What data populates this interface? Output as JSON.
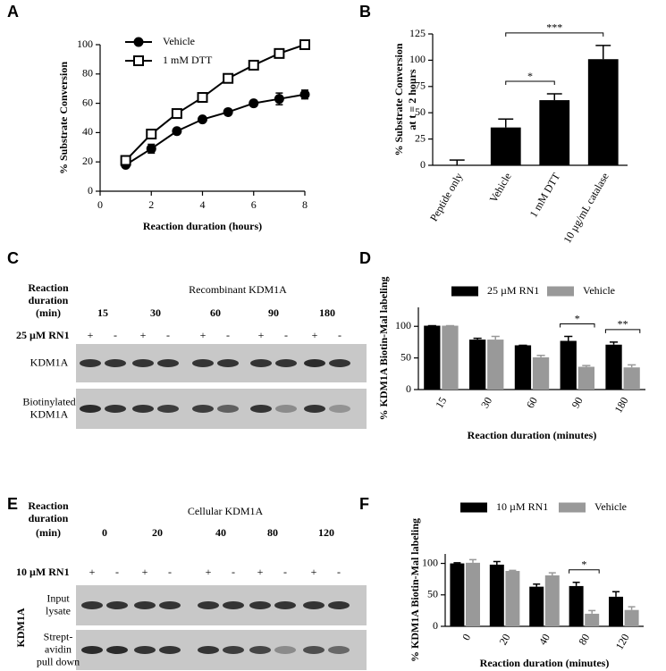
{
  "chart_data": [
    {
      "type": "line",
      "panel": "A",
      "xlabel": "Reaction duration (hours)",
      "ylabel": [
        "% Substrate Conversion"
      ],
      "x": [
        1,
        2,
        3,
        4,
        5,
        6,
        7,
        8
      ],
      "xlim": [
        0,
        8
      ],
      "xticks": [
        0,
        2,
        4,
        6,
        8
      ],
      "ylim": [
        0,
        100
      ],
      "yticks": [
        0,
        20,
        40,
        60,
        80,
        100
      ],
      "legend": "upper left",
      "series": [
        {
          "name": "Vehicle",
          "color": "#000000",
          "marker": "circle",
          "fill": "#000000",
          "values": [
            18,
            29,
            41,
            49,
            54,
            60,
            63,
            66
          ],
          "errors": [
            1,
            3,
            1,
            1,
            2,
            2,
            4,
            3
          ]
        },
        {
          "name": "1 mM DTT",
          "color": "#000000",
          "marker": "square",
          "fill": "#ffffff",
          "values": [
            21,
            39,
            53,
            64,
            77,
            86,
            94,
            100
          ],
          "errors": [
            1,
            1,
            2,
            1,
            2,
            2,
            1,
            1
          ]
        }
      ]
    },
    {
      "type": "bar",
      "panel": "B",
      "ylabel": [
        "% Substrate Conversion",
        "at t = 2 hours"
      ],
      "categories": [
        "Peptide only",
        "Vehicle",
        "1 mM DTT",
        "10 µg/mL catalase"
      ],
      "values": [
        0,
        36,
        62,
        101
      ],
      "errors": [
        5,
        8,
        6,
        13
      ],
      "color": "#000000",
      "ylim": [
        0,
        125
      ],
      "yticks": [
        0,
        25,
        50,
        75,
        100,
        125
      ],
      "annotations": [
        {
          "text": "*",
          "between": [
            1,
            2
          ]
        },
        {
          "text": "***",
          "between": [
            1,
            3
          ]
        }
      ]
    },
    {
      "type": "bar",
      "panel": "D",
      "xlabel": "Reaction duration (minutes)",
      "ylabel": [
        "% KDM1A Biotin-Mal labeling"
      ],
      "categories": [
        "15",
        "30",
        "60",
        "90",
        "180"
      ],
      "ylim": [
        0,
        130
      ],
      "yticks": [
        0,
        50,
        100
      ],
      "legend": "top",
      "series": [
        {
          "name": "25 µM RN1",
          "color": "#000000",
          "values": [
            101,
            79,
            70,
            77,
            71
          ],
          "errors": [
            0,
            2,
            0,
            7,
            4
          ]
        },
        {
          "name": "Vehicle",
          "color": "#999999",
          "values": [
            101,
            79,
            51,
            36,
            35
          ],
          "errors": [
            0,
            5,
            3,
            2,
            4
          ]
        }
      ],
      "annotations": [
        {
          "text": "*",
          "category": 3
        },
        {
          "text": "**",
          "category": 4
        }
      ]
    },
    {
      "type": "bar",
      "panel": "F",
      "xlabel": "Reaction duration (minutes)",
      "ylabel": [
        "% KDM1A Biotin-Mal labeling"
      ],
      "categories": [
        "0",
        "20",
        "40",
        "80",
        "120"
      ],
      "ylim": [
        0,
        115
      ],
      "yticks": [
        0,
        50,
        100
      ],
      "legend": "top",
      "series": [
        {
          "name": "10 µM RN1",
          "color": "#000000",
          "values": [
            100,
            98,
            63,
            64,
            47
          ],
          "errors": [
            1,
            5,
            4,
            6,
            8
          ]
        },
        {
          "name": "Vehicle",
          "color": "#999999",
          "values": [
            101,
            88,
            81,
            20,
            26
          ],
          "errors": [
            5,
            1,
            4,
            5,
            5
          ]
        }
      ],
      "annotations": [
        {
          "text": "*",
          "category": 3
        }
      ]
    }
  ],
  "blots": [
    {
      "panel": "C",
      "title": "Recombinant KDM1A",
      "header": [
        "Reaction",
        "duration",
        "(min)"
      ],
      "times": [
        "15",
        "30",
        "60",
        "90",
        "180"
      ],
      "treatment": "25 µM RN1",
      "signs": [
        "+",
        "-",
        "+",
        "-",
        "+",
        "-",
        "+",
        "-",
        "+",
        "-"
      ],
      "rows": [
        {
          "label": [
            "KDM1A"
          ]
        },
        {
          "label": [
            "Biotinylated",
            "KDM1A"
          ]
        }
      ]
    },
    {
      "panel": "E",
      "title": "Cellular KDM1A",
      "header": [
        "Reaction",
        "duration",
        "(min)"
      ],
      "times": [
        "0",
        "20",
        "40",
        "80",
        "120"
      ],
      "treatment": "10 µM RN1",
      "signs": [
        "+",
        "-",
        "+",
        "-",
        "+",
        "-",
        "+",
        "-",
        "+",
        "-"
      ],
      "group_label": "KDM1A",
      "rows": [
        {
          "label": [
            "Input",
            "lysate"
          ]
        },
        {
          "label": [
            "Strept-",
            "avidin",
            "pull down"
          ]
        }
      ]
    }
  ]
}
